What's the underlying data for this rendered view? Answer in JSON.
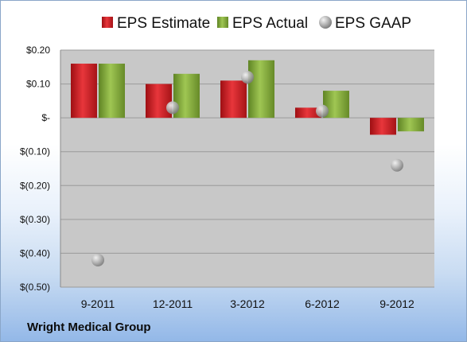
{
  "footer": {
    "company": "Wright Medical Group"
  },
  "colors": {
    "estimate": "#d21f24",
    "actual": "#86ad3a",
    "gaap": "#a9a9a9",
    "plot_bg": "#c8c8c8"
  },
  "chart_data": {
    "type": "bar",
    "categories": [
      "9-2011",
      "12-2011",
      "3-2012",
      "6-2012",
      "9-2012"
    ],
    "series": [
      {
        "name": "EPS Estimate",
        "kind": "bar",
        "values": [
          0.16,
          0.1,
          0.11,
          0.03,
          -0.05
        ]
      },
      {
        "name": "EPS Actual",
        "kind": "bar",
        "values": [
          0.16,
          0.13,
          0.17,
          0.08,
          -0.04
        ]
      },
      {
        "name": "EPS GAAP",
        "kind": "scatter",
        "values": [
          -0.42,
          0.03,
          0.12,
          0.02,
          -0.14
        ]
      }
    ],
    "yticks": [
      0.2,
      0.1,
      0,
      -0.1,
      -0.2,
      -0.3,
      -0.4,
      -0.5
    ],
    "ytick_labels": [
      "$0.20",
      "$0.10",
      "$-",
      "$(0.10)",
      "$(0.20)",
      "$(0.30)",
      "$(0.40)",
      "$(0.50)"
    ],
    "ylim": [
      -0.5,
      0.2
    ],
    "grid": true,
    "legend": "top"
  }
}
